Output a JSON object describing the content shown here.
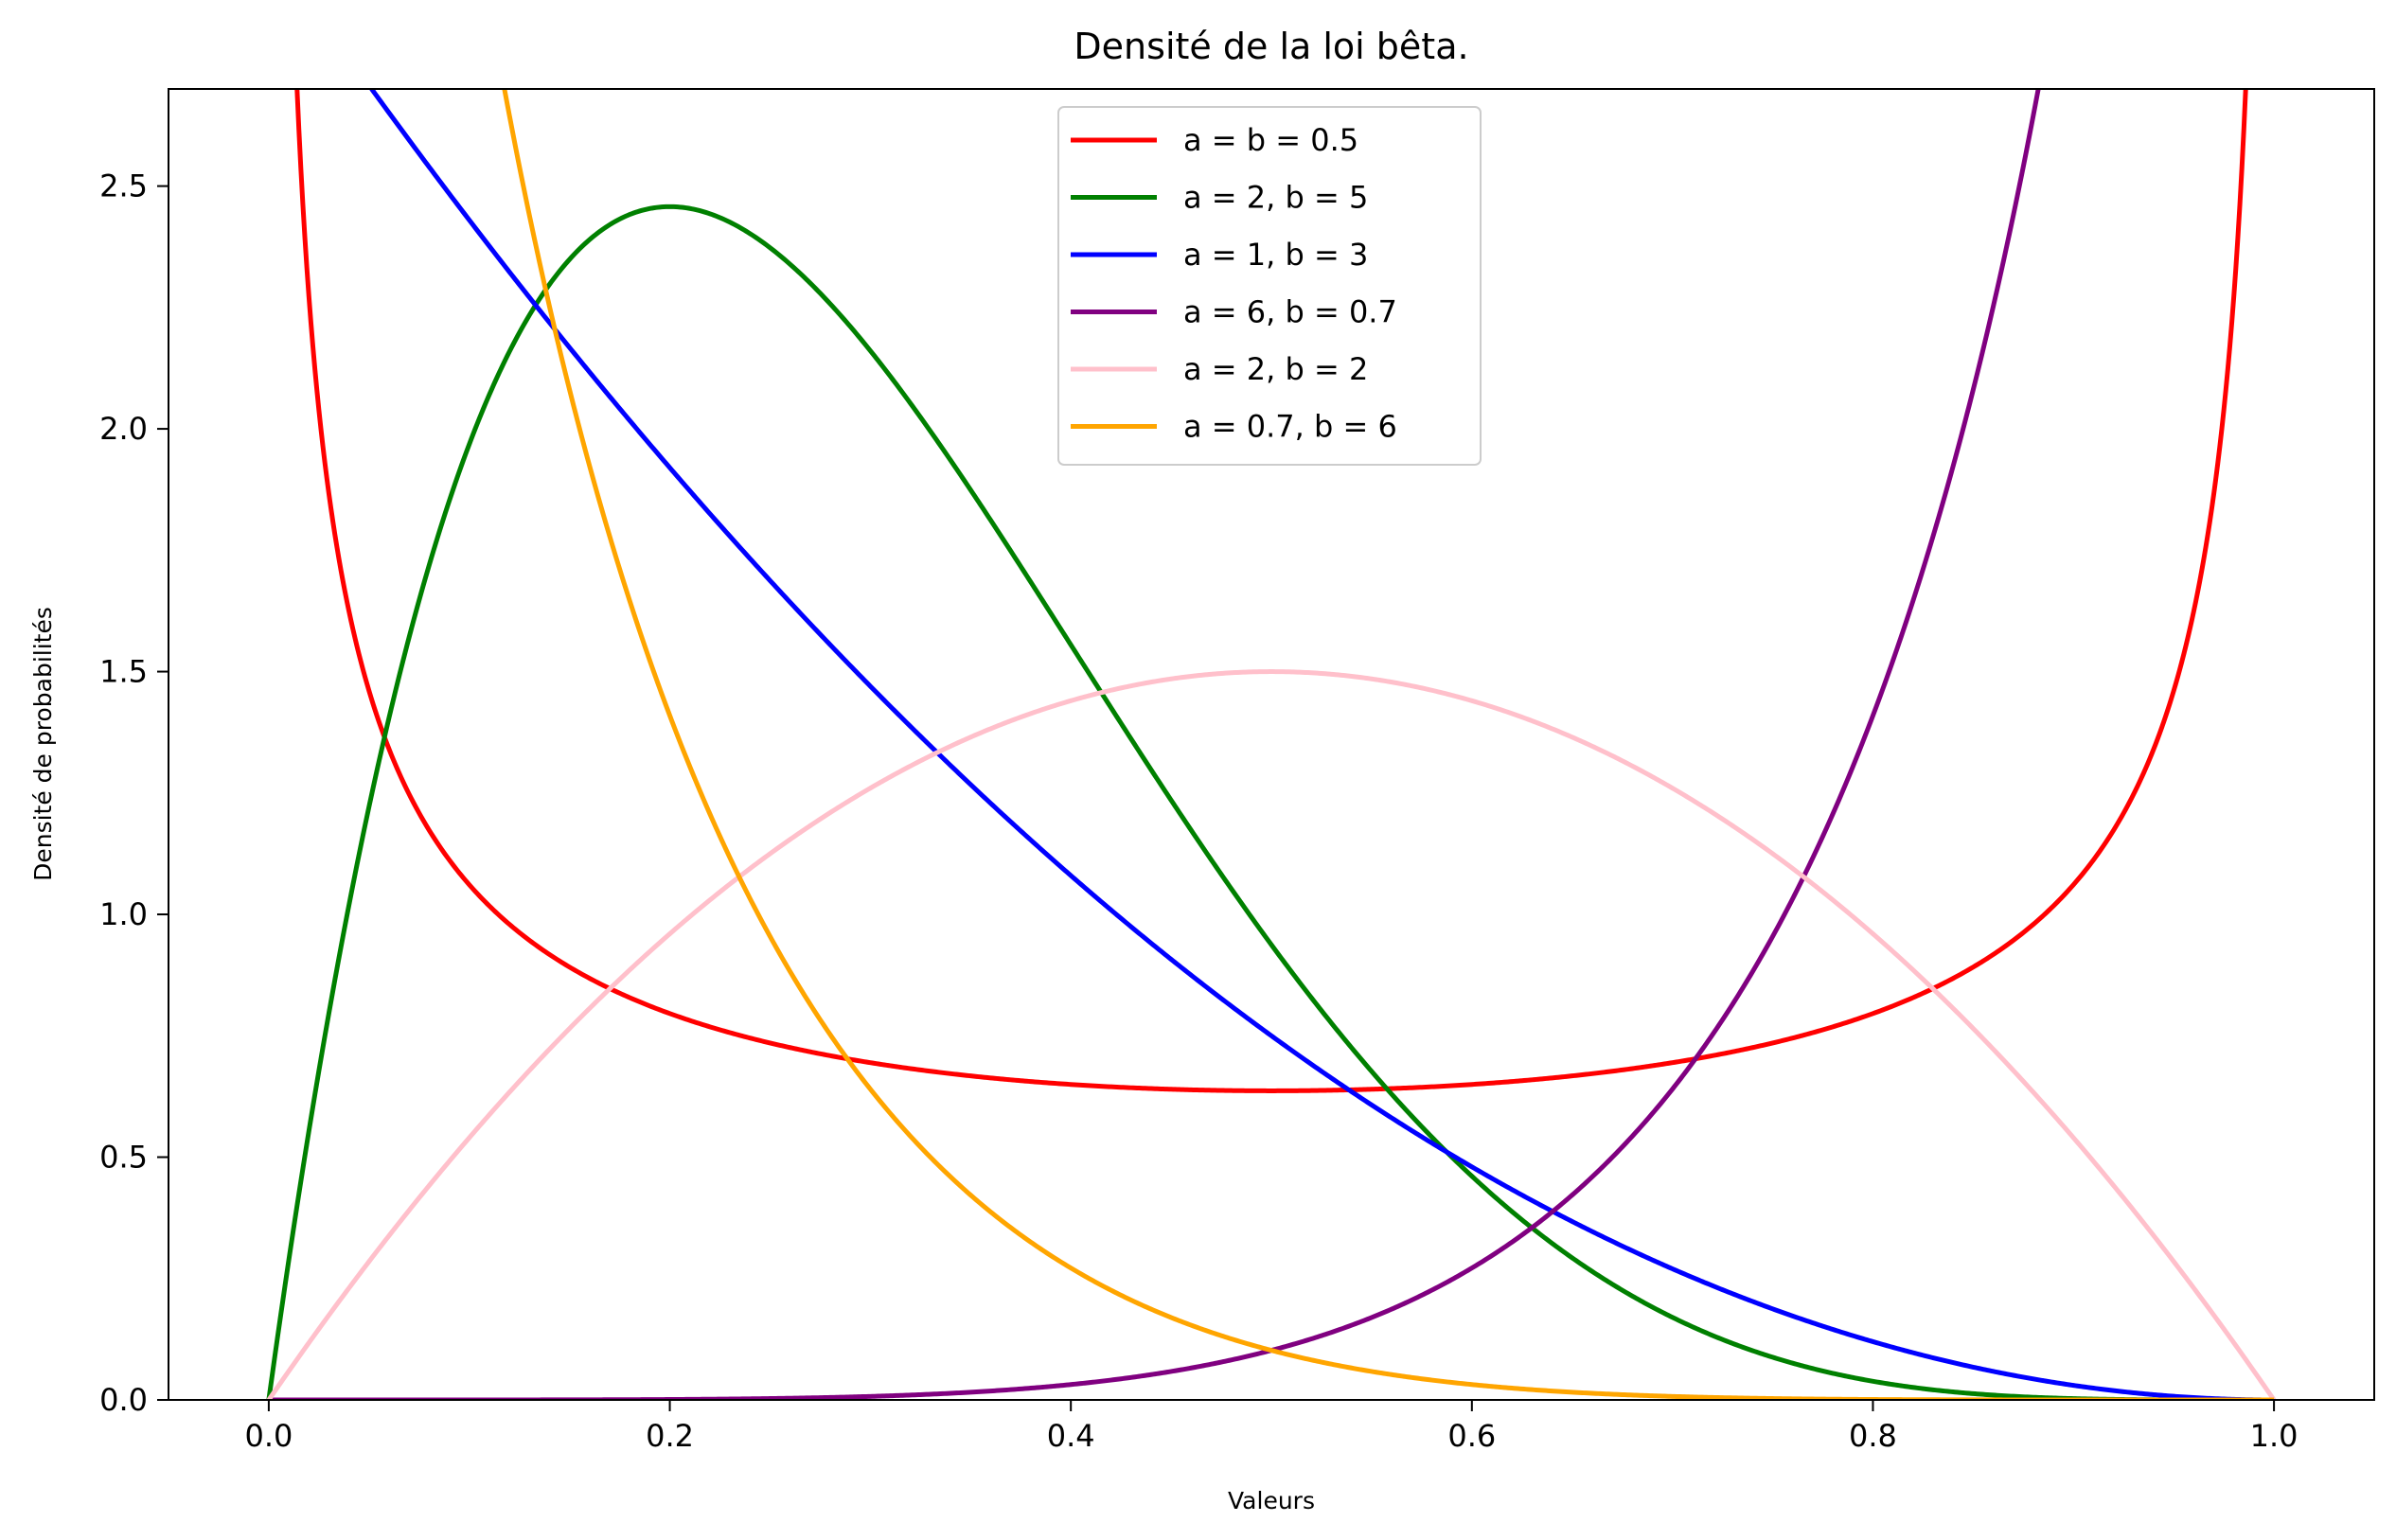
{
  "chart_data": {
    "type": "line",
    "title": "Densité de la loi bêta.",
    "xlabel": "Valeurs",
    "ylabel": "Densité de probabilités",
    "xlim": [
      -0.05,
      1.05
    ],
    "ylim": [
      0,
      2.7
    ],
    "x_ticks": [
      "0.0",
      "0.2",
      "0.4",
      "0.6",
      "0.8",
      "1.0"
    ],
    "y_ticks": [
      "0.0",
      "0.5",
      "1.0",
      "1.5",
      "2.0",
      "2.5"
    ],
    "grid": false,
    "legend_position": "top-center",
    "distribution": "beta",
    "series": [
      {
        "name": "a = b = 0.5",
        "a": 0.5,
        "b": 0.5,
        "color": "#ff0000"
      },
      {
        "name": "a = 2, b = 5",
        "a": 2,
        "b": 5,
        "color": "#008000"
      },
      {
        "name": "a = 1, b = 3",
        "a": 1,
        "b": 3,
        "color": "#0000ff"
      },
      {
        "name": "a = 6, b = 0.7",
        "a": 6,
        "b": 0.7,
        "color": "#800080"
      },
      {
        "name": "a = 2, b = 2",
        "a": 2,
        "b": 2,
        "color": "#ffc0cb"
      },
      {
        "name": "a = 0.7, b = 6",
        "a": 0.7,
        "b": 6,
        "color": "#ffa500"
      }
    ]
  }
}
